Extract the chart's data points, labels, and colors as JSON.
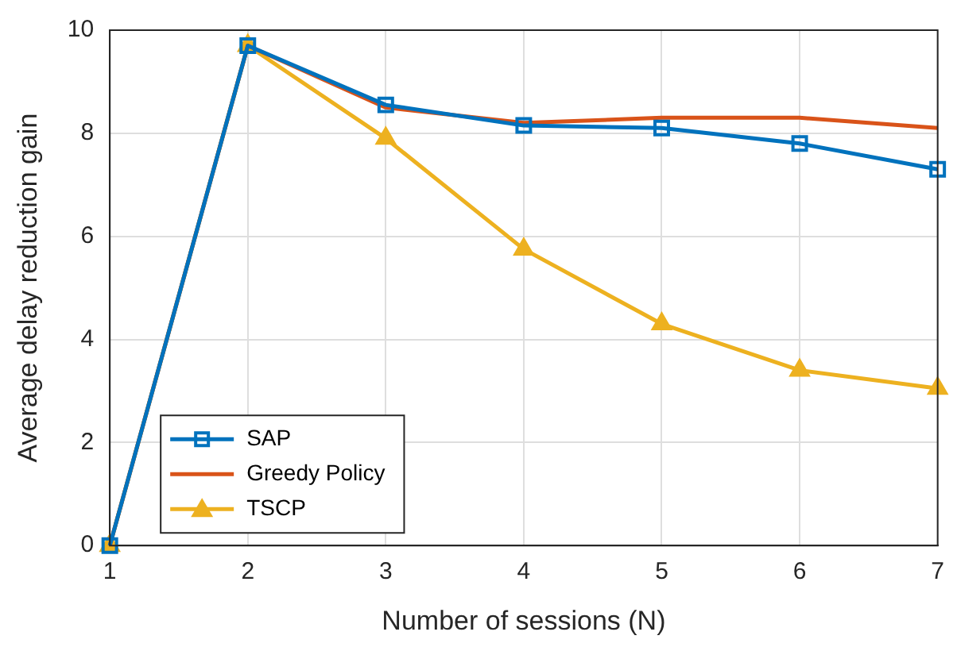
{
  "chart_data": {
    "type": "line",
    "xlabel": "Number of sessions (N)",
    "ylabel": "Average delay reduction gain",
    "x": [
      1,
      2,
      3,
      4,
      5,
      6,
      7
    ],
    "series": [
      {
        "name": "SAP",
        "color": "#0072bd",
        "marker": "square",
        "values": [
          0,
          9.7,
          8.55,
          8.15,
          8.1,
          7.8,
          7.3
        ]
      },
      {
        "name": "Greedy Policy",
        "color": "#d95319",
        "marker": "none",
        "values": [
          0,
          9.7,
          8.5,
          8.2,
          8.3,
          8.3,
          8.1
        ]
      },
      {
        "name": "TSCP",
        "color": "#edb120",
        "marker": "triangle",
        "values": [
          0,
          9.7,
          7.9,
          5.75,
          4.3,
          3.4,
          3.05
        ]
      }
    ],
    "xlim": [
      1,
      7
    ],
    "xticks": [
      1,
      2,
      3,
      4,
      5,
      6,
      7
    ],
    "ylim": [
      0,
      10
    ],
    "yticks": [
      0,
      2,
      4,
      6,
      8,
      10
    ],
    "grid": true,
    "legend": "bottom left",
    "line_style": "solid"
  }
}
